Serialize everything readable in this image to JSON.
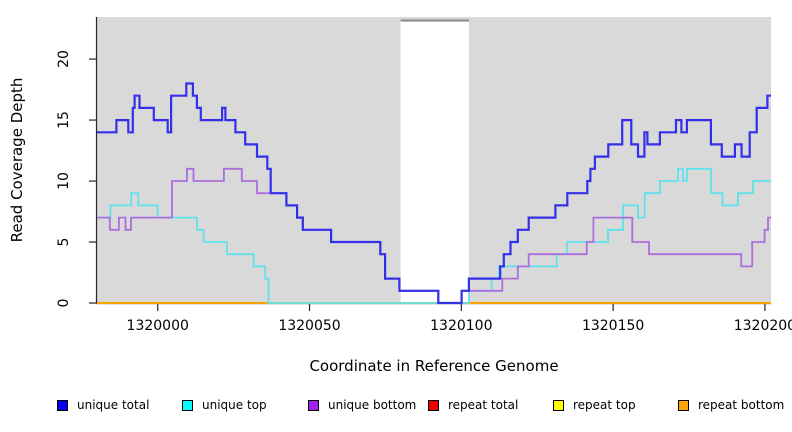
{
  "figure": {
    "x_axis_title": "Coordinate in Reference Genome",
    "y_axis_title": "Read Coverage Depth"
  },
  "legend": {
    "items": [
      {
        "label": "unique total",
        "color": "#0000EE"
      },
      {
        "label": "unique top",
        "color": "#00FFFF"
      },
      {
        "label": "unique bottom",
        "color": "#A020F0"
      },
      {
        "label": "repeat total",
        "color": "#EE0000"
      },
      {
        "label": "repeat top",
        "color": "#FFFF00"
      },
      {
        "label": "repeat bottom",
        "color": "#FFA500"
      }
    ]
  },
  "chart_data": {
    "type": "line",
    "step": true,
    "title": "",
    "xlabel": "Coordinate in Reference Genome",
    "ylabel": "Read Coverage Depth",
    "xlim": [
      1319980,
      1320202
    ],
    "ylim": [
      0,
      23.45
    ],
    "x_ticks": [
      1320000,
      1320050,
      1320100,
      1320150,
      1320200
    ],
    "y_ticks": [
      0,
      5,
      10,
      15,
      20
    ],
    "grid": false,
    "legend_position": "bottom",
    "panel_bg": "#D9D9D9",
    "gap_band": {
      "x_start": 1320080,
      "x_end": 1320102.5,
      "fill": "#FFFFFF",
      "top_border": "#909090"
    },
    "series": [
      {
        "name": "repeat total",
        "color": "#EE0000",
        "line_color": "#EE0000",
        "width": 1.5,
        "points": [
          [
            1319980,
            0
          ]
        ]
      },
      {
        "name": "repeat top",
        "color": "#FFFF00",
        "line_color": "#FFFF00",
        "width": 1.5,
        "points": [
          [
            1319980,
            0
          ]
        ]
      },
      {
        "name": "repeat bottom",
        "color": "#FFA500",
        "line_color": "#FFA500",
        "width": 2,
        "points": [
          [
            1319980,
            0
          ]
        ]
      },
      {
        "name": "unique top",
        "color": "#00FFFF",
        "line_color": "#5FE2EC",
        "width": 1.8,
        "points": [
          [
            1319980,
            7
          ],
          [
            1319984.4,
            8
          ],
          [
            1319991.3,
            9
          ],
          [
            1319993.6,
            8
          ],
          [
            1320000,
            7
          ],
          [
            1320012.9,
            6
          ],
          [
            1320015.1,
            5
          ],
          [
            1320022.8,
            4
          ],
          [
            1320031.6,
            3
          ],
          [
            1320035.4,
            2
          ],
          [
            1320036.5,
            0
          ],
          [
            1320102.5,
            1
          ],
          [
            1320110,
            2
          ],
          [
            1320112.4,
            3
          ],
          [
            1320131.4,
            4
          ],
          [
            1320134.8,
            5
          ],
          [
            1320148.3,
            6
          ],
          [
            1320153.3,
            8
          ],
          [
            1320158.2,
            7
          ],
          [
            1320160.4,
            9
          ],
          [
            1320165.4,
            10
          ],
          [
            1320171.4,
            11
          ],
          [
            1320173,
            10
          ],
          [
            1320174.3,
            11
          ],
          [
            1320182.3,
            9
          ],
          [
            1320186,
            8
          ],
          [
            1320191.1,
            9
          ],
          [
            1320196.1,
            10
          ]
        ]
      },
      {
        "name": "unique bottom",
        "color": "#A020F0",
        "line_color": "#AC6EDD",
        "width": 1.8,
        "points": [
          [
            1319980,
            7
          ],
          [
            1319984.2,
            6
          ],
          [
            1319987.2,
            7
          ],
          [
            1319989.4,
            6
          ],
          [
            1319991.2,
            7
          ],
          [
            1320004.7,
            10
          ],
          [
            1320009.6,
            11
          ],
          [
            1320011.8,
            10
          ],
          [
            1320021.8,
            11
          ],
          [
            1320027.7,
            10
          ],
          [
            1320032.7,
            9
          ],
          [
            1320042.4,
            8
          ],
          [
            1320045.9,
            7
          ],
          [
            1320047.8,
            6
          ],
          [
            1320057.1,
            5
          ],
          [
            1320073.3,
            4
          ],
          [
            1320074.9,
            2
          ],
          [
            1320079.6,
            1
          ],
          [
            1320092.4,
            0
          ],
          [
            1320100.1,
            1
          ],
          [
            1320113.5,
            2
          ],
          [
            1320118.6,
            3
          ],
          [
            1320122.2,
            4
          ],
          [
            1320141.3,
            5
          ],
          [
            1320143.5,
            7
          ],
          [
            1320156.3,
            5
          ],
          [
            1320161.8,
            4
          ],
          [
            1320192.2,
            3
          ],
          [
            1320195.8,
            5
          ],
          [
            1320199.9,
            6
          ],
          [
            1320201,
            7
          ]
        ]
      },
      {
        "name": "unique total",
        "color": "#0000EE",
        "line_color": "#3430EA",
        "width": 2.2,
        "points": [
          [
            1319980,
            14
          ],
          [
            1319986.4,
            15
          ],
          [
            1319990.3,
            14
          ],
          [
            1319991.8,
            16
          ],
          [
            1319992.4,
            17
          ],
          [
            1319994,
            16
          ],
          [
            1319998.7,
            15
          ],
          [
            1320003.3,
            14
          ],
          [
            1320004.4,
            17
          ],
          [
            1320009.4,
            18
          ],
          [
            1320011.6,
            17
          ],
          [
            1320012.9,
            16
          ],
          [
            1320014.2,
            15
          ],
          [
            1320021.2,
            16
          ],
          [
            1320022.3,
            15
          ],
          [
            1320025.6,
            14
          ],
          [
            1320028.8,
            13
          ],
          [
            1320032.7,
            12
          ],
          [
            1320036.1,
            11
          ],
          [
            1320037.2,
            9
          ],
          [
            1320042.4,
            8
          ],
          [
            1320045.9,
            7
          ],
          [
            1320047.8,
            6
          ],
          [
            1320057.1,
            5
          ],
          [
            1320073.3,
            4
          ],
          [
            1320074.9,
            2
          ],
          [
            1320079.6,
            1
          ],
          [
            1320092.4,
            0
          ],
          [
            1320100.1,
            1
          ],
          [
            1320102.5,
            2
          ],
          [
            1320112.8,
            3
          ],
          [
            1320114,
            4
          ],
          [
            1320116.2,
            5
          ],
          [
            1320118.6,
            6
          ],
          [
            1320122.2,
            7
          ],
          [
            1320131,
            8
          ],
          [
            1320134.9,
            9
          ],
          [
            1320141.5,
            10
          ],
          [
            1320142.5,
            11
          ],
          [
            1320144,
            12
          ],
          [
            1320148.4,
            13
          ],
          [
            1320153,
            15
          ],
          [
            1320156,
            13
          ],
          [
            1320158.2,
            12
          ],
          [
            1320160.3,
            14
          ],
          [
            1320161.3,
            13
          ],
          [
            1320165.4,
            14
          ],
          [
            1320170.7,
            15
          ],
          [
            1320172.5,
            14
          ],
          [
            1320174.3,
            15
          ],
          [
            1320182.2,
            13
          ],
          [
            1320185.8,
            12
          ],
          [
            1320190.1,
            13
          ],
          [
            1320192.3,
            12
          ],
          [
            1320195,
            14
          ],
          [
            1320197.3,
            16
          ],
          [
            1320200.8,
            17
          ]
        ]
      }
    ]
  }
}
